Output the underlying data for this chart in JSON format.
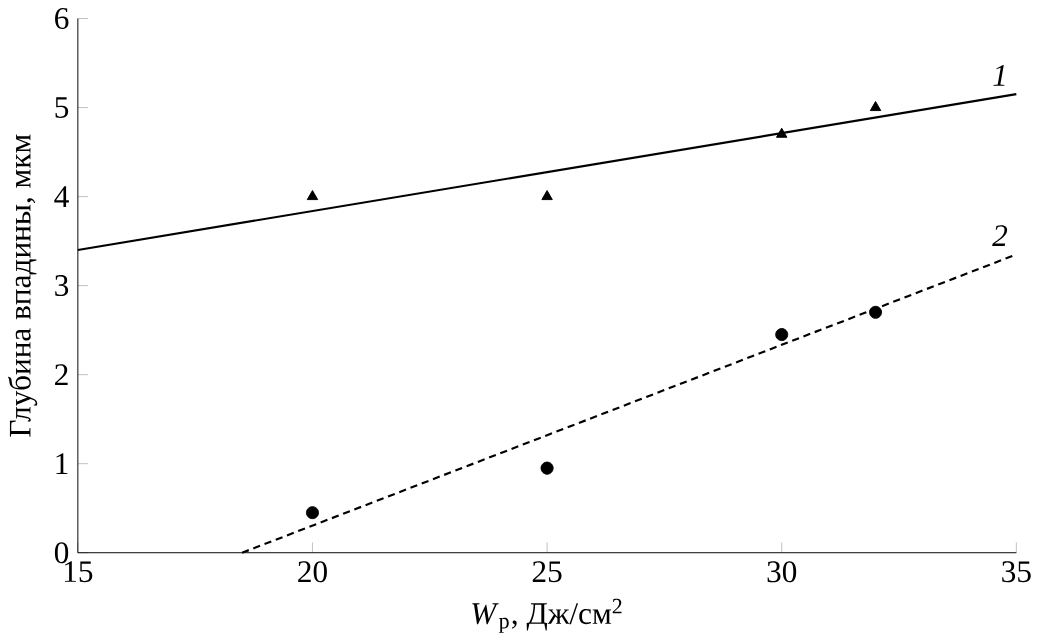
{
  "chart_data": {
    "type": "scatter",
    "xlabel": "*W*$_{p}$, Дж/см$^{2}$",
    "ylabel": "Глубина впадины, мкм",
    "xlim": [
      15,
      35
    ],
    "ylim": [
      0,
      6
    ],
    "xticks": [
      15,
      20,
      25,
      30,
      35
    ],
    "yticks": [
      0,
      1,
      2,
      3,
      4,
      5,
      6
    ],
    "series": [
      {
        "marker": "triangle",
        "color": "#000000",
        "x": [
          20,
          25,
          30,
          32
        ],
        "values": [
          4.0,
          4.0,
          4.7,
          5.0
        ]
      },
      {
        "marker": "circle",
        "color": "#000000",
        "x": [
          20,
          25,
          30,
          32
        ],
        "values": [
          0.45,
          0.95,
          2.45,
          2.7
        ]
      },
      {
        "type": "line",
        "name": "1",
        "marker": "none",
        "line_style": "solid",
        "color": "#000000",
        "x": [
          15,
          35
        ],
        "values": [
          3.4,
          5.15
        ]
      },
      {
        "type": "line",
        "name": "2",
        "marker": "none",
        "line_style": "dashed",
        "color": "#000000",
        "x": [
          18.5,
          35
        ],
        "values": [
          0,
          3.35
        ]
      }
    ]
  }
}
